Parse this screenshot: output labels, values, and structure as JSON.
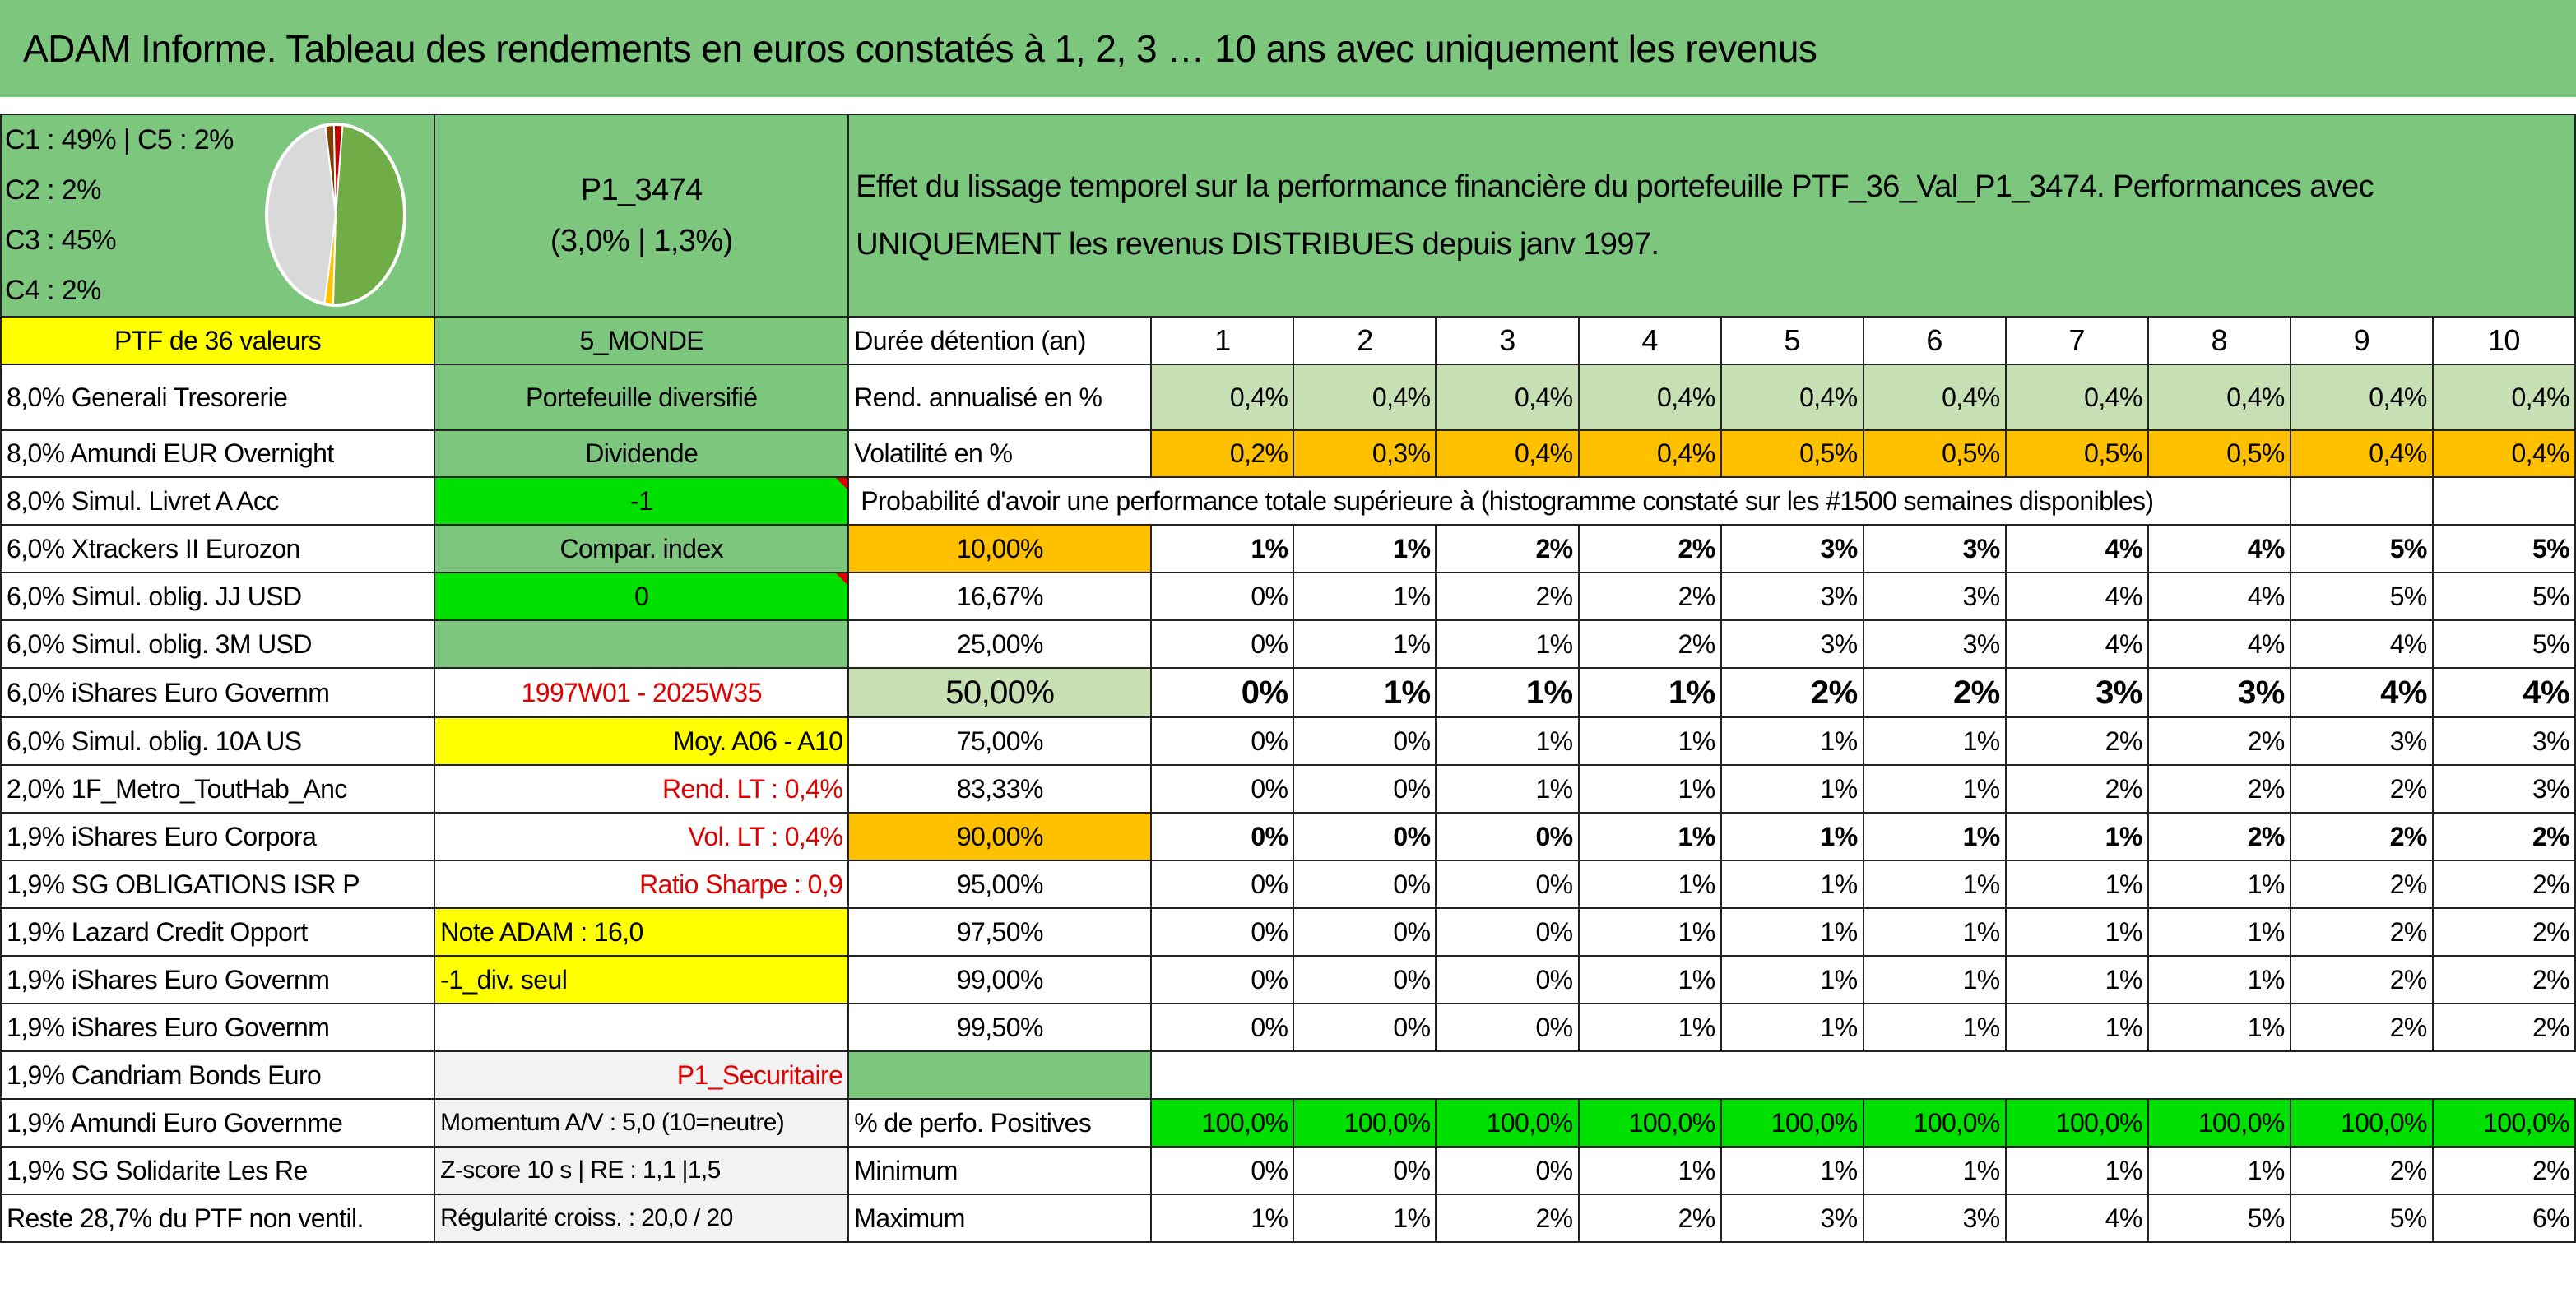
{
  "title": "ADAM Informe. Tableau des rendements en euros constatés à 1, 2, 3 … 10 ans avec uniquement les revenus",
  "pie_legend": [
    "C1 : 49% | C5 : 2%",
    "C2 : 2%",
    "C3 : 45%",
    "C4 : 2%"
  ],
  "pie_slices": [
    {
      "name": "C1",
      "value": 49,
      "color": "#70ad47"
    },
    {
      "name": "C2",
      "value": 2,
      "color": "#ffc000"
    },
    {
      "name": "C3",
      "value": 45,
      "color": "#d9d9d9"
    },
    {
      "name": "C4",
      "value": 2,
      "color": "#7f3f00"
    },
    {
      "name": "C5",
      "value": 2,
      "color": "#c00000"
    }
  ],
  "portfolio": {
    "code": "P1_3474",
    "perf": "(3,0% | 1,3%)"
  },
  "description": {
    "line1": "Effet du lissage temporel sur la performance financière du portefeuille PTF_36_Val_P1_3474. Performances avec",
    "line2": "UNIQUEMENT les revenus DISTRIBUES depuis janv 1997."
  },
  "ptf_label": "PTF de 36 valeurs",
  "holdings": [
    "8,0% Generali Tresorerie",
    "8,0% Amundi EUR Overnight",
    "8,0% Simul. Livret A Acc",
    "6,0% Xtrackers II Eurozon",
    "6,0% Simul. oblig. JJ USD",
    "6,0% Simul. oblig. 3M USD",
    "6,0% iShares Euro Governm",
    "6,0% Simul. oblig. 10A US",
    "2,0% 1F_Metro_ToutHab_Anc",
    "1,9% iShares Euro Corpora",
    "1,9% SG OBLIGATIONS ISR P",
    "1,9% Lazard Credit Opport",
    "1,9% iShares Euro Governm",
    "1,9% iShares Euro Governm",
    "1,9% Candriam Bonds Euro",
    "1,9% Amundi Euro Governme",
    "1,9% SG Solidarite Les Re",
    "Reste 28,7% du PTF non ventil."
  ],
  "info": {
    "zone": "5_MONDE",
    "type": "Portefeuille diversifié",
    "dividende": "Dividende",
    "dividende_val": "-1",
    "compar": "Compar. index",
    "compar_val": "0",
    "period": "1997W01 - 2025W35",
    "moy": "Moy. A06 - A10",
    "rend_lt": "Rend. LT : 0,4%",
    "vol_lt": "Vol. LT : 0,4%",
    "sharpe": "Ratio Sharpe : 0,9",
    "note": "Note ADAM : 16,0",
    "div_seul": "-1_div. seul",
    "category": "P1_Securitaire",
    "momentum": "Momentum A/V : 5,0 (10=neutre)",
    "zscore": "Z-score 10 s | RE : 1,1 |1,5",
    "regularite": "Régularité croiss. : 20,0 / 20"
  },
  "table": {
    "duration_label": "Durée détention (an)",
    "years": [
      "1",
      "2",
      "3",
      "4",
      "5",
      "6",
      "7",
      "8",
      "9",
      "10"
    ],
    "rend_label": "Rend. annualisé en %",
    "rend": [
      "0,4%",
      "0,4%",
      "0,4%",
      "0,4%",
      "0,4%",
      "0,4%",
      "0,4%",
      "0,4%",
      "0,4%",
      "0,4%"
    ],
    "vol_label": "Volatilité en %",
    "vol": [
      "0,2%",
      "0,3%",
      "0,4%",
      "0,4%",
      "0,5%",
      "0,5%",
      "0,5%",
      "0,5%",
      "0,4%",
      "0,4%"
    ],
    "prob_title": "Probabilité d'avoir une performance totale supérieure à (histogramme constaté sur les #1500 semaines disponibles)",
    "prob_rows": [
      {
        "pct": "10,00%",
        "vals": [
          "1%",
          "1%",
          "2%",
          "2%",
          "3%",
          "3%",
          "4%",
          "4%",
          "5%",
          "5%"
        ]
      },
      {
        "pct": "16,67%",
        "vals": [
          "0%",
          "1%",
          "2%",
          "2%",
          "3%",
          "3%",
          "4%",
          "4%",
          "5%",
          "5%"
        ]
      },
      {
        "pct": "25,00%",
        "vals": [
          "0%",
          "1%",
          "1%",
          "2%",
          "3%",
          "3%",
          "4%",
          "4%",
          "4%",
          "5%"
        ]
      },
      {
        "pct": "50,00%",
        "vals": [
          "0%",
          "1%",
          "1%",
          "1%",
          "2%",
          "2%",
          "3%",
          "3%",
          "4%",
          "4%"
        ]
      },
      {
        "pct": "75,00%",
        "vals": [
          "0%",
          "0%",
          "1%",
          "1%",
          "1%",
          "1%",
          "2%",
          "2%",
          "3%",
          "3%"
        ]
      },
      {
        "pct": "83,33%",
        "vals": [
          "0%",
          "0%",
          "1%",
          "1%",
          "1%",
          "1%",
          "2%",
          "2%",
          "2%",
          "3%"
        ]
      },
      {
        "pct": "90,00%",
        "vals": [
          "0%",
          "0%",
          "0%",
          "1%",
          "1%",
          "1%",
          "1%",
          "2%",
          "2%",
          "2%"
        ]
      },
      {
        "pct": "95,00%",
        "vals": [
          "0%",
          "0%",
          "0%",
          "1%",
          "1%",
          "1%",
          "1%",
          "1%",
          "2%",
          "2%"
        ]
      },
      {
        "pct": "97,50%",
        "vals": [
          "0%",
          "0%",
          "0%",
          "1%",
          "1%",
          "1%",
          "1%",
          "1%",
          "2%",
          "2%"
        ]
      },
      {
        "pct": "99,00%",
        "vals": [
          "0%",
          "0%",
          "0%",
          "1%",
          "1%",
          "1%",
          "1%",
          "1%",
          "2%",
          "2%"
        ]
      },
      {
        "pct": "99,50%",
        "vals": [
          "0%",
          "0%",
          "0%",
          "1%",
          "1%",
          "1%",
          "1%",
          "1%",
          "2%",
          "2%"
        ]
      }
    ],
    "pos_label": "% de perfo. Positives",
    "pos": [
      "100,0%",
      "100,0%",
      "100,0%",
      "100,0%",
      "100,0%",
      "100,0%",
      "100,0%",
      "100,0%",
      "100,0%",
      "100,0%"
    ],
    "min_label": "Minimum",
    "min": [
      "0%",
      "0%",
      "0%",
      "1%",
      "1%",
      "1%",
      "1%",
      "1%",
      "2%",
      "2%"
    ],
    "max_label": "Maximum",
    "max": [
      "1%",
      "1%",
      "2%",
      "2%",
      "3%",
      "3%",
      "4%",
      "5%",
      "5%",
      "6%"
    ]
  }
}
